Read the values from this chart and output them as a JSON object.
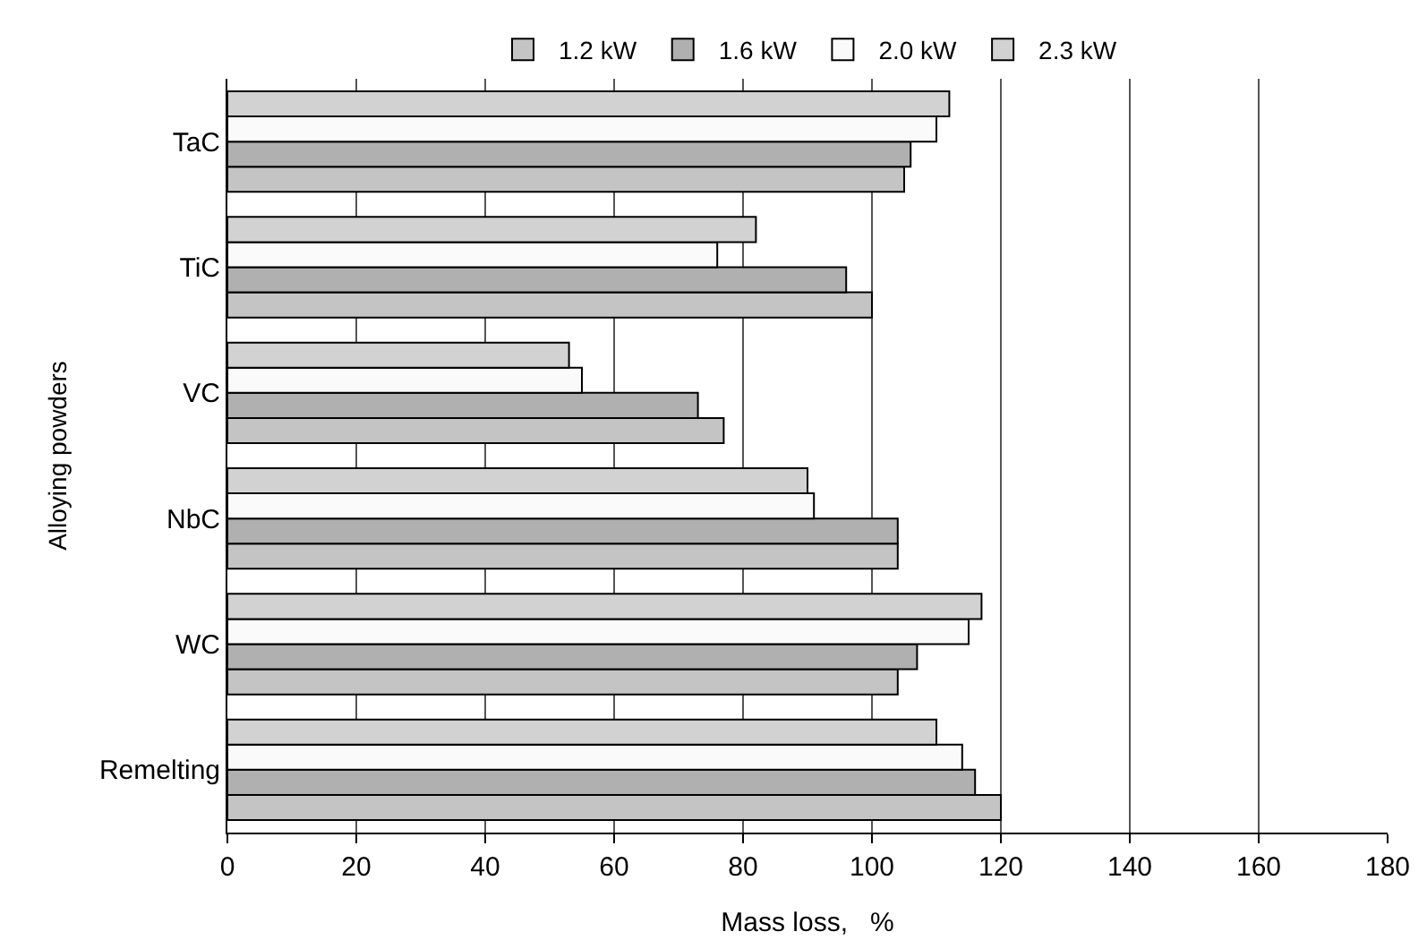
{
  "chart_data": {
    "type": "bar",
    "orientation": "horizontal",
    "xlabel": "Mass loss,   %",
    "ylabel": "Alloying powders",
    "categories": [
      "TaC",
      "TiC",
      "VC",
      "NbC",
      "WC",
      "Remelting"
    ],
    "series": [
      {
        "name": "1.2 kW",
        "color": "#c4c4c4",
        "values": [
          105,
          100,
          77,
          104,
          104,
          120
        ]
      },
      {
        "name": "1.6 kW",
        "color": "#b0b0b0",
        "values": [
          106,
          96,
          73,
          104,
          107,
          116
        ]
      },
      {
        "name": "2.0 kW",
        "color": "#fafafa",
        "values": [
          110,
          76,
          55,
          91,
          115,
          114
        ]
      },
      {
        "name": "2.3 kW",
        "color": "#d2d2d2",
        "values": [
          112,
          82,
          53,
          90,
          117,
          110
        ]
      }
    ],
    "xlim": [
      0,
      180
    ],
    "xticks": [
      0,
      20,
      40,
      60,
      80,
      100,
      120,
      140,
      160,
      180
    ],
    "grid": "x",
    "legend": "top"
  }
}
